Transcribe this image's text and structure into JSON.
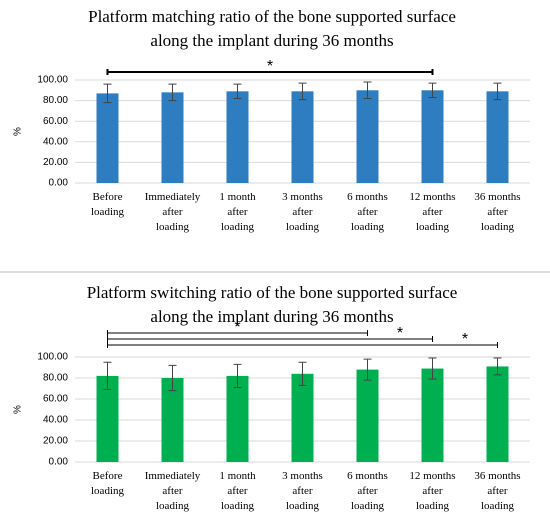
{
  "chart_data": [
    {
      "type": "bar",
      "title": "Platform matching ratio of the bone supported surface\nalong the implant during 36 months",
      "ylabel": "%",
      "categories": [
        "Before\nloading",
        "Immediately\nafter\nloading",
        "1 month\nafter\nloading",
        "3 months\nafter\nloading",
        "6 months\nafter\nloading",
        "12 months\nafter\nloading",
        "36 months\nafter\nloading"
      ],
      "values": [
        87,
        88,
        89,
        89,
        90,
        90,
        89
      ],
      "errors": [
        9,
        8,
        7,
        8,
        8,
        7,
        8
      ],
      "color": "#2e7dc0",
      "ylim": [
        0,
        100
      ],
      "yticks": [
        {
          "value": 0,
          "label": "0.00"
        },
        {
          "value": 20,
          "label": "20.00"
        },
        {
          "value": 40,
          "label": "40.00"
        },
        {
          "value": 60,
          "label": "60.00"
        },
        {
          "value": 80,
          "label": "80.00"
        },
        {
          "value": 100,
          "label": "100.00"
        }
      ],
      "comparisons": [
        {
          "from": 0,
          "to": 5,
          "label": "*"
        }
      ]
    },
    {
      "type": "bar",
      "title": "Platform switching ratio of the bone supported surface\nalong the implant during 36 months",
      "ylabel": "%",
      "categories": [
        "Before\nloading",
        "Immediately\nafter\nloading",
        "1 month\nafter\nloading",
        "3 months\nafter\nloading",
        "6 months\nafter\nloading",
        "12 months\nafter\nloading",
        "36 months\nafter\nloading"
      ],
      "values": [
        82,
        80,
        82,
        84,
        88,
        89,
        91
      ],
      "errors": [
        13,
        12,
        11,
        11,
        10,
        10,
        8
      ],
      "color": "#00b050",
      "ylim": [
        0,
        100
      ],
      "yticks": [
        {
          "value": 0,
          "label": "0.00"
        },
        {
          "value": 20,
          "label": "20.00"
        },
        {
          "value": 40,
          "label": "40.00"
        },
        {
          "value": 60,
          "label": "60.00"
        },
        {
          "value": 80,
          "label": "80.00"
        },
        {
          "value": 100,
          "label": "100.00"
        }
      ],
      "comparisons": [
        {
          "from": 0,
          "to": 4,
          "label": "*"
        },
        {
          "from": 0,
          "to": 5,
          "label": "*"
        },
        {
          "from": 0,
          "to": 6,
          "label": "*"
        }
      ]
    }
  ]
}
